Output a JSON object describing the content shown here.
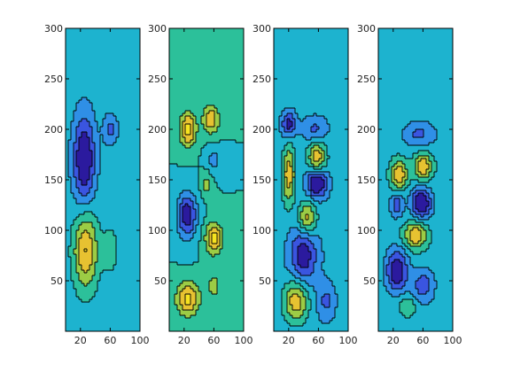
{
  "chart_data": {
    "type": "heatmap",
    "description_free": true,
    "xlim": [
      0,
      100
    ],
    "ylim": [
      0,
      300
    ],
    "x_ticks": [
      20,
      60,
      100
    ],
    "y_ticks": [
      50,
      100,
      150,
      200,
      250,
      300
    ],
    "colormap": [
      "#2b1a9e",
      "#3a55e0",
      "#2f8fe6",
      "#1db3cf",
      "#2cc09a",
      "#9ccc45",
      "#e7c231",
      "#f7e31f"
    ],
    "panels": [
      {
        "background": 0.43,
        "blobs": [
          {
            "x": 25,
            "y": 170,
            "rx": 14,
            "ry": 42,
            "v": -0.95
          },
          {
            "x": 60,
            "y": 200,
            "rx": 9,
            "ry": 14,
            "v": -0.45
          },
          {
            "x": 27,
            "y": 80,
            "rx": 16,
            "ry": 38,
            "v": 0.9
          },
          {
            "x": 60,
            "y": 80,
            "rx": 10,
            "ry": 20,
            "v": 0.35
          }
        ]
      },
      {
        "background": 0.5,
        "blobs": [
          {
            "x": 25,
            "y": 200,
            "rx": 11,
            "ry": 17,
            "v": 0.85
          },
          {
            "x": 56,
            "y": 210,
            "rx": 11,
            "ry": 14,
            "v": 0.7
          },
          {
            "x": 60,
            "y": 170,
            "rx": 10,
            "ry": 12,
            "v": -0.35
          },
          {
            "x": 50,
            "y": 145,
            "rx": 7,
            "ry": 12,
            "v": 0.35
          },
          {
            "x": 24,
            "y": 115,
            "rx": 13,
            "ry": 22,
            "v": -0.95
          },
          {
            "x": 60,
            "y": 92,
            "rx": 11,
            "ry": 15,
            "v": 0.85
          },
          {
            "x": 25,
            "y": 32,
            "rx": 15,
            "ry": 16,
            "v": 0.85
          },
          {
            "x": 60,
            "y": 45,
            "rx": 12,
            "ry": 18,
            "v": 0.3
          }
        ]
      },
      {
        "background": 0.42,
        "blobs": [
          {
            "x": 20,
            "y": 205,
            "rx": 9,
            "ry": 12,
            "v": -0.75
          },
          {
            "x": 55,
            "y": 200,
            "rx": 16,
            "ry": 12,
            "v": -0.4
          },
          {
            "x": 20,
            "y": 155,
            "rx": 8,
            "ry": 28,
            "v": 0.85
          },
          {
            "x": 58,
            "y": 172,
            "rx": 12,
            "ry": 15,
            "v": 0.85
          },
          {
            "x": 58,
            "y": 147,
            "rx": 13,
            "ry": 14,
            "v": -1.0
          },
          {
            "x": 45,
            "y": 112,
            "rx": 12,
            "ry": 16,
            "v": 0.8
          },
          {
            "x": 40,
            "y": 75,
            "rx": 18,
            "ry": 28,
            "v": -0.75
          },
          {
            "x": 30,
            "y": 30,
            "rx": 16,
            "ry": 20,
            "v": 0.85
          },
          {
            "x": 70,
            "y": 30,
            "rx": 12,
            "ry": 18,
            "v": -0.4
          }
        ]
      },
      {
        "background": 0.45,
        "blobs": [
          {
            "x": 55,
            "y": 195,
            "rx": 22,
            "ry": 13,
            "v": -0.45
          },
          {
            "x": 28,
            "y": 155,
            "rx": 11,
            "ry": 14,
            "v": 0.85
          },
          {
            "x": 60,
            "y": 163,
            "rx": 12,
            "ry": 13,
            "v": 0.85
          },
          {
            "x": 58,
            "y": 127,
            "rx": 13,
            "ry": 15,
            "v": -1.0
          },
          {
            "x": 25,
            "y": 125,
            "rx": 9,
            "ry": 12,
            "v": -0.55
          },
          {
            "x": 50,
            "y": 95,
            "rx": 15,
            "ry": 13,
            "v": 0.85
          },
          {
            "x": 25,
            "y": 60,
            "rx": 14,
            "ry": 20,
            "v": -0.95
          },
          {
            "x": 60,
            "y": 45,
            "rx": 15,
            "ry": 17,
            "v": -0.55
          },
          {
            "x": 40,
            "y": 25,
            "rx": 12,
            "ry": 10,
            "v": 0.35
          }
        ]
      }
    ]
  }
}
